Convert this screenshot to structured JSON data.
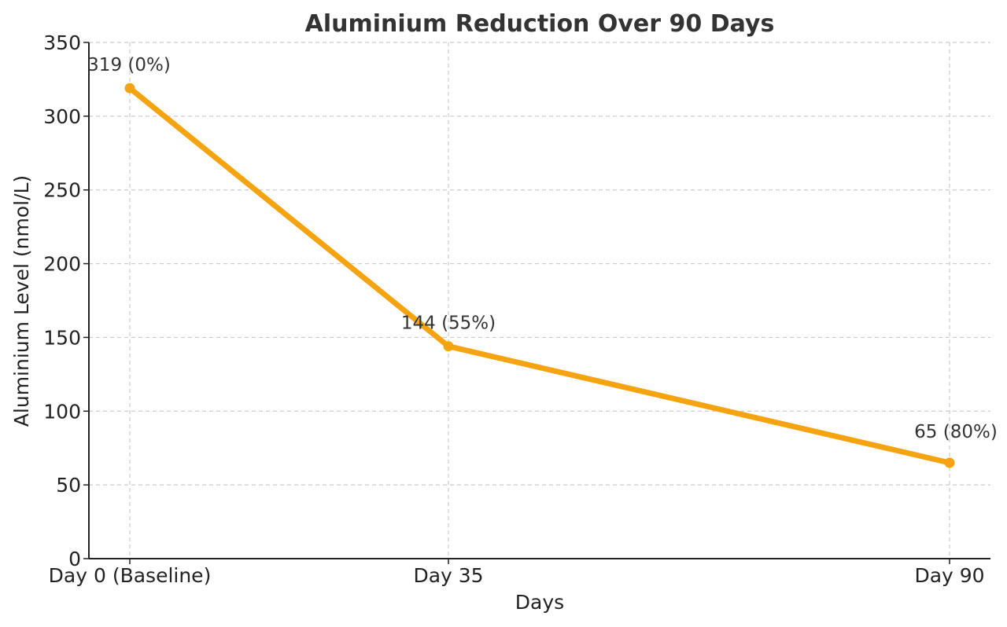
{
  "chart_data": {
    "type": "line",
    "title": "Aluminium Reduction Over 90 Days",
    "xlabel": "Days",
    "ylabel": "Aluminium Level (nmol/L)",
    "ylim": [
      0,
      350
    ],
    "yticks": [
      0,
      50,
      100,
      150,
      200,
      250,
      300,
      350
    ],
    "x": [
      0,
      35,
      90
    ],
    "categories": [
      "Day 0 (Baseline)",
      "Day 35",
      "Day 90"
    ],
    "values": [
      319,
      144,
      65
    ],
    "point_labels": [
      "319 (0%)",
      "144 (55%)",
      "65 (80%)"
    ],
    "grid": true,
    "color": "#F5A30F"
  }
}
